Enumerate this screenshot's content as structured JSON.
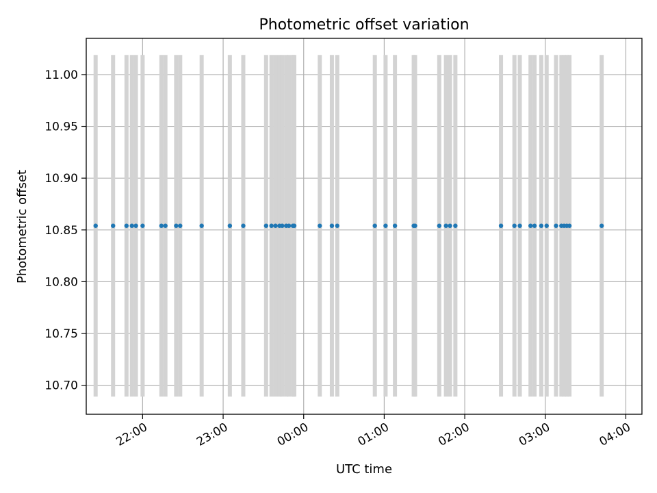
{
  "chart_data": {
    "type": "scatter",
    "title": "Photometric offset variation",
    "xlabel": "UTC time",
    "ylabel": "Photometric offset",
    "x_ticks": [
      "22:00",
      "23:00",
      "00:00",
      "01:00",
      "02:00",
      "03:00",
      "04:00"
    ],
    "y_ticks": [
      "10.70",
      "10.75",
      "10.80",
      "10.85",
      "10.90",
      "10.95",
      "11.00"
    ],
    "xlim": [
      "21:18",
      "04:12"
    ],
    "ylim": [
      10.672,
      11.035
    ],
    "grid": true,
    "point_color": "#1f77b4",
    "marker_color": "#d3d3d3",
    "marker_span": [
      10.689,
      11.019
    ],
    "series": [
      {
        "x": [
          "21:25",
          "21:38",
          "21:48",
          "21:52",
          "21:55",
          "22:00",
          "22:14",
          "22:17",
          "22:25",
          "22:28",
          "22:44",
          "23:05",
          "23:15",
          "23:32",
          "23:36",
          "23:39",
          "23:42",
          "23:44",
          "23:47",
          "23:49",
          "23:52",
          "23:53",
          "00:12",
          "00:21",
          "00:25",
          "00:53",
          "01:01",
          "01:08",
          "01:22",
          "01:23",
          "01:41",
          "01:46",
          "01:49",
          "01:53",
          "02:27",
          "02:37",
          "02:41",
          "02:49",
          "02:52",
          "02:57",
          "03:01",
          "03:08",
          "03:12",
          "03:14",
          "03:16",
          "03:18",
          "03:42"
        ],
        "y": [
          10.854,
          10.854,
          10.854,
          10.854,
          10.854,
          10.854,
          10.854,
          10.854,
          10.854,
          10.854,
          10.854,
          10.854,
          10.854,
          10.854,
          10.854,
          10.854,
          10.854,
          10.854,
          10.854,
          10.854,
          10.854,
          10.854,
          10.854,
          10.854,
          10.854,
          10.854,
          10.854,
          10.854,
          10.854,
          10.854,
          10.854,
          10.854,
          10.854,
          10.854,
          10.854,
          10.854,
          10.854,
          10.854,
          10.854,
          10.854,
          10.854,
          10.854,
          10.854,
          10.854,
          10.854,
          10.854,
          10.854
        ]
      }
    ],
    "markers_x": [
      "21:25",
      "21:38",
      "21:48",
      "21:52",
      "21:55",
      "22:00",
      "22:14",
      "22:17",
      "22:25",
      "22:28",
      "22:44",
      "23:05",
      "23:15",
      "23:32",
      "23:36",
      "23:39",
      "23:42",
      "23:44",
      "23:47",
      "23:49",
      "23:52",
      "23:53",
      "00:12",
      "00:21",
      "00:25",
      "00:53",
      "01:01",
      "01:08",
      "01:22",
      "01:23",
      "01:41",
      "01:46",
      "01:49",
      "01:53",
      "02:27",
      "02:37",
      "02:41",
      "02:49",
      "02:52",
      "02:57",
      "03:01",
      "03:08",
      "03:12",
      "03:14",
      "03:16",
      "03:18",
      "03:42"
    ]
  }
}
